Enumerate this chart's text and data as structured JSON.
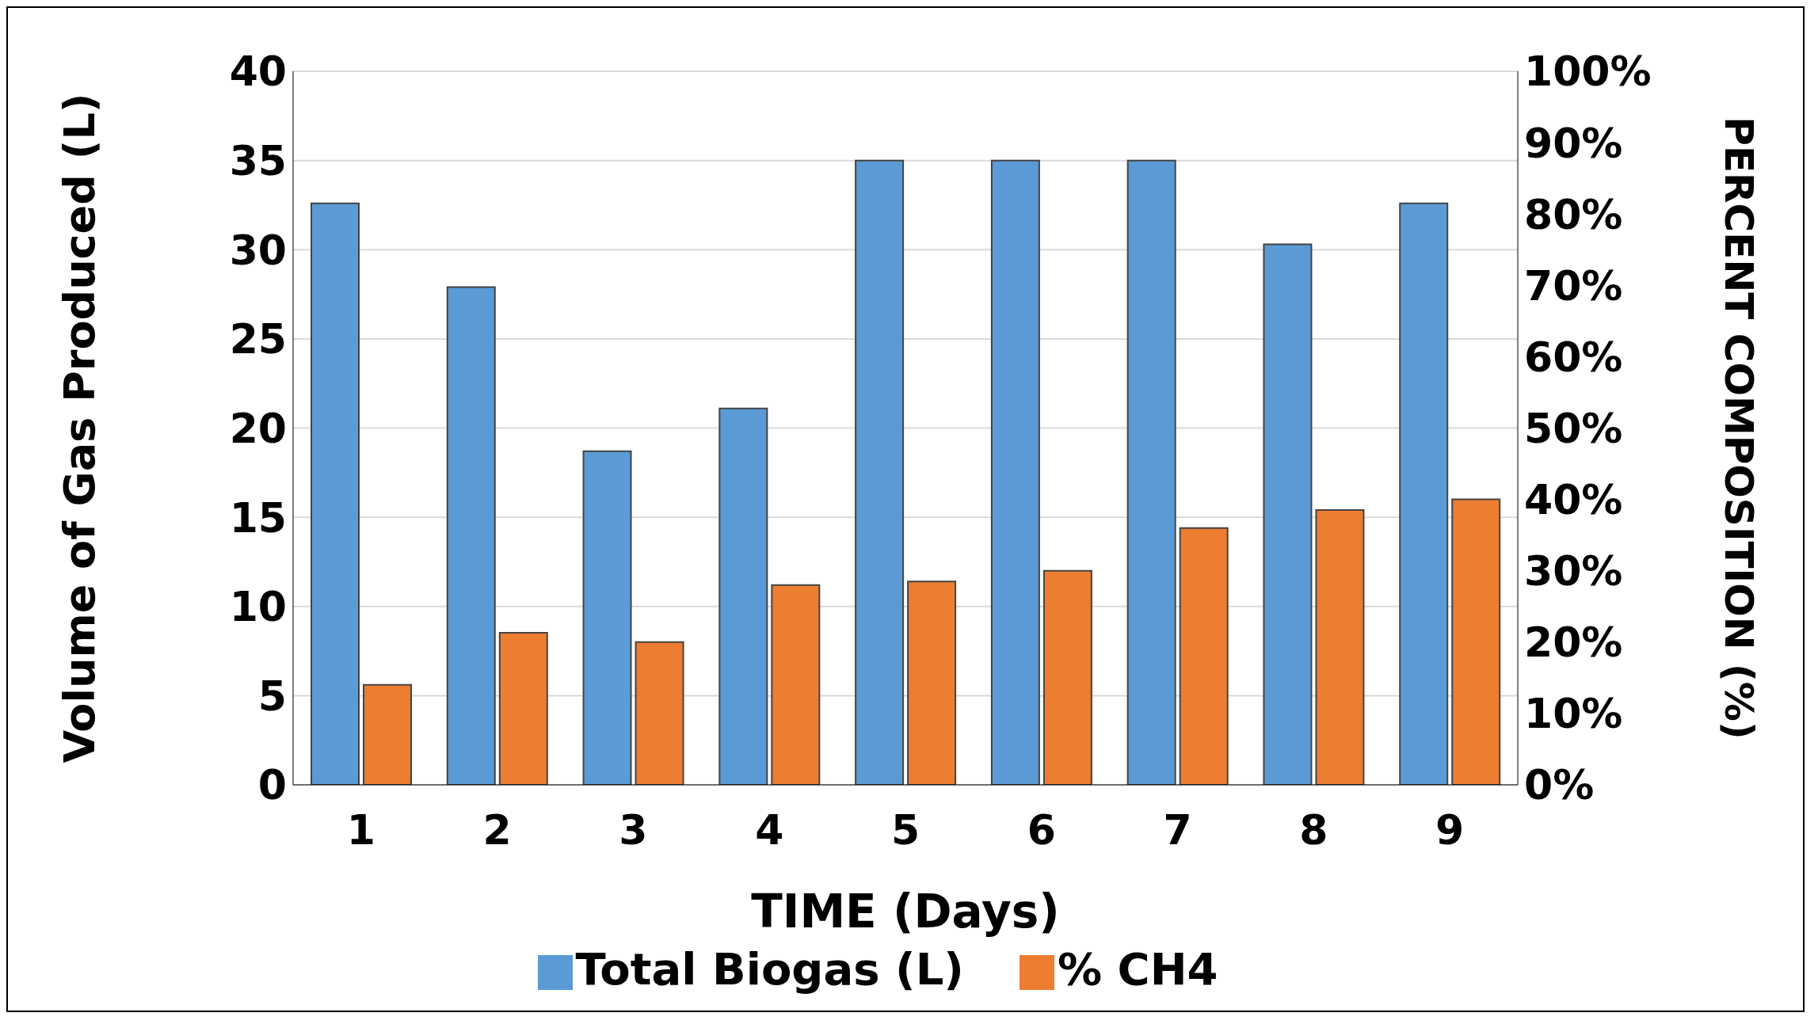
{
  "chart_data": {
    "type": "bar",
    "xlabel": "TIME (Days)",
    "ylabel": "Volume of Gas Produced (L)",
    "y2label": "PERCENT COMPOSITION (%)",
    "categories": [
      "1",
      "2",
      "3",
      "4",
      "5",
      "6",
      "7",
      "8",
      "9"
    ],
    "series": [
      {
        "name": "Total Biogas (L)",
        "color": "#5b9bd5",
        "values": [
          32.6,
          27.9,
          18.7,
          21.1,
          35,
          35,
          35,
          30.3,
          32.6
        ]
      },
      {
        "name": "% CH4",
        "color": "#ed7d31",
        "axis": "y2",
        "values": [
          14,
          21.3,
          20,
          28,
          28.5,
          30,
          36,
          38.5,
          40
        ]
      }
    ],
    "ylim": [
      0,
      40
    ],
    "yticks": [
      0,
      5,
      10,
      15,
      20,
      25,
      30,
      35,
      40
    ],
    "y2lim": [
      0,
      100
    ],
    "y2ticks": [
      {
        "value": 0,
        "label": "0%"
      },
      {
        "value": 10,
        "label": "10%"
      },
      {
        "value": 20,
        "label": "20%"
      },
      {
        "value": 30,
        "label": "30%"
      },
      {
        "value": 40,
        "label": "40%"
      },
      {
        "value": 50,
        "label": "50%"
      },
      {
        "value": 60,
        "label": "60%"
      },
      {
        "value": 70,
        "label": "70%"
      },
      {
        "value": 80,
        "label": "80%"
      },
      {
        "value": 90,
        "label": "90%"
      },
      {
        "value": 100,
        "label": "100%"
      }
    ],
    "grid": "y",
    "legend": "bottom"
  }
}
